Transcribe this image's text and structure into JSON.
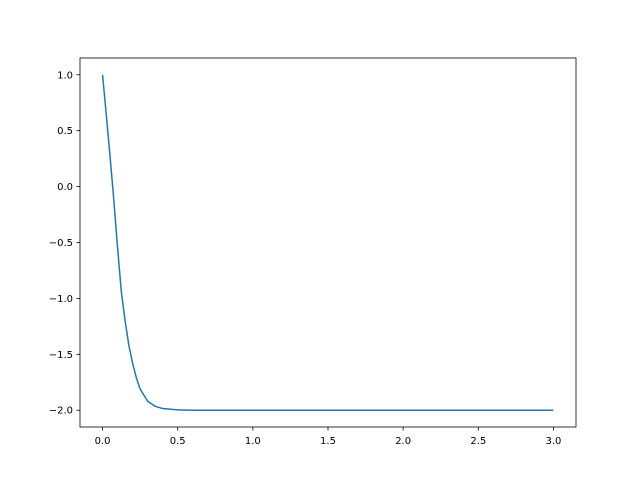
{
  "chart_data": {
    "type": "line",
    "title": "",
    "xlabel": "",
    "ylabel": "",
    "xlim": [
      -0.15,
      3.15
    ],
    "ylim": [
      -2.15,
      1.15
    ],
    "grid": false,
    "x_ticks": [
      "0.0",
      "0.5",
      "1.0",
      "1.5",
      "2.0",
      "2.5",
      "3.0"
    ],
    "y_ticks": [
      "−2.0",
      "−1.5",
      "−1.0",
      "−0.5",
      "0.0",
      "0.5",
      "1.0"
    ],
    "series": [
      {
        "color": "#1f77b4",
        "x": [
          0,
          0.025,
          0.05,
          0.075,
          0.1,
          0.125,
          0.15,
          0.175,
          0.2,
          0.225,
          0.25,
          0.3,
          0.35,
          0.4,
          0.5,
          0.6,
          0.8,
          1.0,
          1.5,
          2.0,
          2.5,
          3.0
        ],
        "y": [
          1.0,
          0.64,
          0.27,
          -0.12,
          -0.55,
          -0.94,
          -1.2,
          -1.42,
          -1.58,
          -1.71,
          -1.81,
          -1.92,
          -1.965,
          -1.985,
          -1.997,
          -2.0,
          -2.0,
          -2.0,
          -2.0,
          -2.0,
          -2.0,
          -2.0
        ]
      }
    ]
  }
}
